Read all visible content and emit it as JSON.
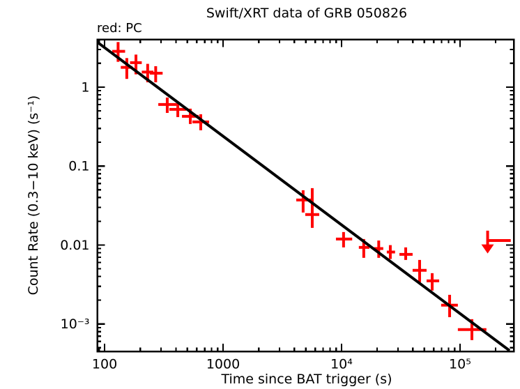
{
  "header": {
    "title": "Swift/XRT data of GRB 050826",
    "mode_label": "red: PC"
  },
  "axes": {
    "x": {
      "label": "Time since BAT trigger (s)",
      "scale": "log",
      "range": [
        86.7,
        284000
      ],
      "major_ticks": [
        {
          "value": 100,
          "label": "100"
        },
        {
          "value": 1000,
          "label": "1000"
        },
        {
          "value": 10000,
          "label": "10⁴"
        },
        {
          "value": 100000,
          "label": "10⁵"
        }
      ]
    },
    "y": {
      "label": "Count Rate (0.3−10 keV) (s⁻¹)",
      "scale": "log",
      "range": [
        0.00045,
        4.02
      ],
      "major_ticks": [
        {
          "value": 1,
          "label": "1"
        },
        {
          "value": 0.1,
          "label": "0.1"
        },
        {
          "value": 0.01,
          "label": "0.01"
        },
        {
          "value": 0.001,
          "label": "10⁻³"
        }
      ]
    }
  },
  "colors": {
    "pc_mode": "#ff0000",
    "fit_line": "#000000",
    "frame": "#000000",
    "background": "#ffffff"
  },
  "chart_data": {
    "type": "scatter",
    "title": "Swift/XRT data of GRB 050826",
    "xlabel": "Time since BAT trigger (s)",
    "ylabel": "Count Rate (0.3−10 keV) (s⁻¹)",
    "xscale": "log",
    "yscale": "log",
    "xlim": [
      86.7,
      284000
    ],
    "ylim": [
      0.00045,
      4.02
    ],
    "grid": false,
    "series": [
      {
        "name": "PC",
        "color": "#ff0000",
        "marker": "error-bar-cross",
        "points": [
          {
            "t": 130,
            "t_lo": 116,
            "t_hi": 149,
            "rate": 2.84,
            "rate_lo": 2.09,
            "rate_hi": 3.72
          },
          {
            "t": 154,
            "t_lo": 137,
            "t_hi": 172,
            "rate": 1.78,
            "rate_lo": 1.27,
            "rate_hi": 2.33
          },
          {
            "t": 184,
            "t_lo": 164,
            "t_hi": 206,
            "rate": 2.04,
            "rate_lo": 1.45,
            "rate_hi": 2.58
          },
          {
            "t": 231,
            "t_lo": 206,
            "t_hi": 258,
            "rate": 1.55,
            "rate_lo": 1.15,
            "rate_hi": 1.97
          },
          {
            "t": 270,
            "t_lo": 241,
            "t_hi": 309,
            "rate": 1.5,
            "rate_lo": 1.15,
            "rate_hi": 1.84
          },
          {
            "t": 338,
            "t_lo": 284,
            "t_hi": 404,
            "rate": 0.602,
            "rate_lo": 0.471,
            "rate_hi": 0.737
          },
          {
            "t": 415,
            "t_lo": 352,
            "t_hi": 488,
            "rate": 0.522,
            "rate_lo": 0.417,
            "rate_hi": 0.639
          },
          {
            "t": 529,
            "t_lo": 450,
            "t_hi": 623,
            "rate": 0.426,
            "rate_lo": 0.341,
            "rate_hi": 0.533
          },
          {
            "t": 648,
            "t_lo": 551,
            "t_hi": 762,
            "rate": 0.362,
            "rate_lo": 0.284,
            "rate_hi": 0.453
          },
          {
            "t": 4740,
            "t_lo": 4150,
            "t_hi": 5590,
            "rate": 0.0372,
            "rate_lo": 0.0258,
            "rate_hi": 0.0494
          },
          {
            "t": 5660,
            "t_lo": 4940,
            "t_hi": 6480,
            "rate": 0.0243,
            "rate_lo": 0.0165,
            "rate_hi": 0.0525
          },
          {
            "t": 10400,
            "t_lo": 8970,
            "t_hi": 12300,
            "rate": 0.0119,
            "rate_lo": 0.00933,
            "rate_hi": 0.0146
          },
          {
            "t": 15400,
            "t_lo": 14000,
            "t_hi": 17200,
            "rate": 0.00933,
            "rate_lo": 0.00688,
            "rate_hi": 0.0119
          },
          {
            "t": 20600,
            "t_lo": 18800,
            "t_hi": 22500,
            "rate": 0.00902,
            "rate_lo": 0.00688,
            "rate_hi": 0.0114
          },
          {
            "t": 25800,
            "t_lo": 24100,
            "t_hi": 28300,
            "rate": 0.00815,
            "rate_lo": 0.00665,
            "rate_hi": 0.00997
          },
          {
            "t": 34800,
            "t_lo": 30800,
            "t_hi": 39800,
            "rate": 0.00762,
            "rate_lo": 0.00647,
            "rate_hi": 0.00933
          },
          {
            "t": 45600,
            "t_lo": 39800,
            "t_hi": 52200,
            "rate": 0.00478,
            "rate_lo": 0.00338,
            "rate_hi": 0.00647
          },
          {
            "t": 58200,
            "t_lo": 52200,
            "t_hi": 66700,
            "rate": 0.00352,
            "rate_lo": 0.00265,
            "rate_hi": 0.0044
          },
          {
            "t": 81700,
            "t_lo": 69300,
            "t_hi": 95900,
            "rate": 0.00173,
            "rate_lo": 0.00122,
            "rate_hi": 0.00234
          },
          {
            "t": 126000,
            "t_lo": 95900,
            "t_hi": 167000,
            "rate": 0.00085,
            "rate_lo": 0.000625,
            "rate_hi": 0.00115
          }
        ]
      }
    ],
    "upper_limit": {
      "t": 171000,
      "t_bar_hi": 268000,
      "rate": 0.0114,
      "shaft_top_rate": 0.0152,
      "arrow_tip_rate": 0.0078,
      "color": "#ff0000"
    },
    "fit_line": {
      "type": "power-law",
      "color": "#000000",
      "points": [
        {
          "t": 87,
          "rate": 3.7
        },
        {
          "t": 262000,
          "rate": 0.00046
        }
      ]
    }
  }
}
